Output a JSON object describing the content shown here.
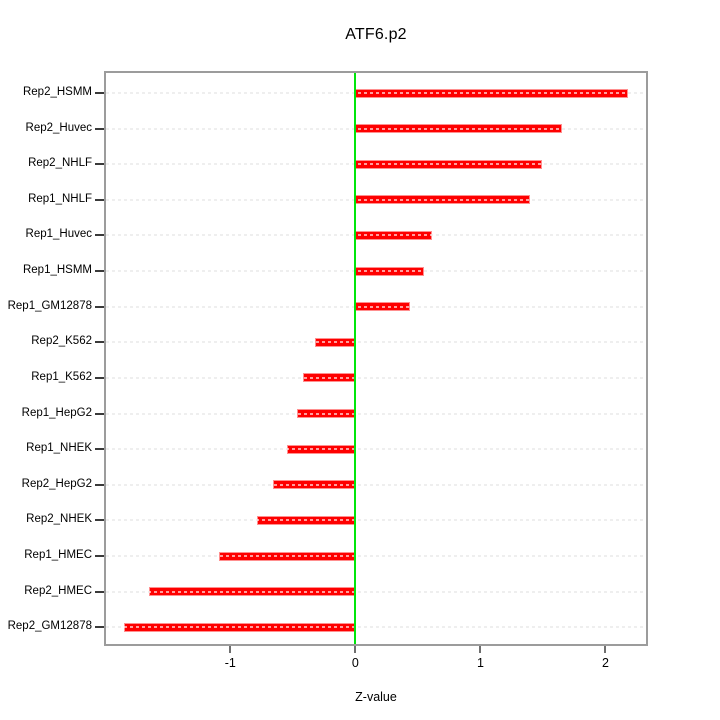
{
  "title": "ATF6.p2",
  "xlabel": "Z-value",
  "chart_data": {
    "type": "bar",
    "orientation": "horizontal",
    "title": "ATF6.p2",
    "xlabel": "Z-value",
    "categories": [
      "Rep2_HSMM",
      "Rep2_Huvec",
      "Rep2_NHLF",
      "Rep1_NHLF",
      "Rep1_Huvec",
      "Rep1_HSMM",
      "Rep1_GM12878",
      "Rep2_K562",
      "Rep1_K562",
      "Rep1_HepG2",
      "Rep1_NHEK",
      "Rep2_HepG2",
      "Rep2_NHEK",
      "Rep1_HMEC",
      "Rep2_HMEC",
      "Rep2_GM12878"
    ],
    "values": [
      2.18,
      1.65,
      1.49,
      1.4,
      0.61,
      0.55,
      0.44,
      -0.32,
      -0.42,
      -0.47,
      -0.55,
      -0.66,
      -0.79,
      -1.09,
      -1.65,
      -1.85
    ],
    "xlim": [
      -2.01,
      2.34
    ],
    "x_ticks": [
      -1,
      0,
      1,
      2
    ],
    "grid": true,
    "zero_line": 0,
    "colors": {
      "bar_fill": "#fe0000",
      "bar_border": "#ff8f8f",
      "zero_line": "#00e60b",
      "grid_line": "#d4d4d4",
      "plot_border": "#9c9c9c"
    }
  }
}
